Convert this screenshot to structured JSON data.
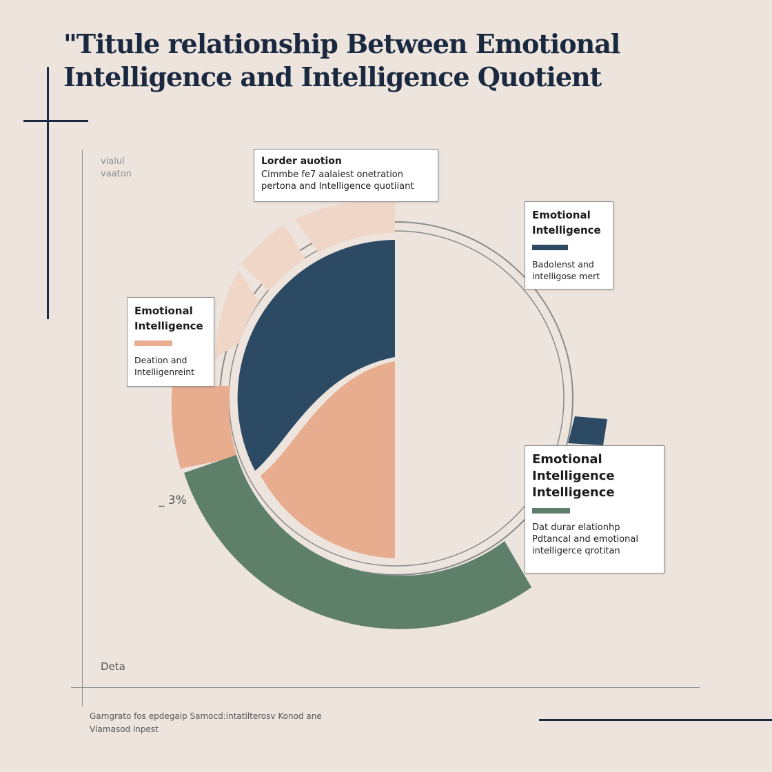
{
  "chart_data": {
    "type": "pie",
    "title_lines": [
      "\"Titule relationship Between Emotional",
      "Intelligence and Intelligence Quotient"
    ],
    "y_axis_caption_lines": [
      "vialul",
      "vaaton"
    ],
    "x_axis_caption": "Deta",
    "annotation": "_ 3%",
    "footer_lines": [
      "Gamgrato fos epdegaip Samocd:intatilterosv Konod ane",
      "Vlamasod lnpest"
    ],
    "series_colors": {
      "navy": "#2d4a64",
      "peach": "#e8ac8f",
      "light_peach": "#f0d6c6",
      "green": "#5e806b",
      "outline": "#8a8a8a"
    },
    "inner_pie": {
      "navy_share": 0.25,
      "peach_share": 0.25,
      "empty_share": 0.5
    },
    "outer_ring": {
      "light_peach_share": 0.22,
      "peach_share": 0.08,
      "green_share": 0.25,
      "navy_share": 0.02
    },
    "callouts": {
      "top": {
        "heading": "Lorder auotion",
        "body_lines": [
          "Cimmbe fe7 aalaiest onetration",
          "pertona and Intelligence quotiiant"
        ]
      },
      "right": {
        "heading_lines": [
          "Emotional",
          "Intelligence"
        ],
        "swatch": "#2d4a64",
        "body_lines": [
          "Badolenst and",
          "intelligose mert"
        ]
      },
      "left": {
        "heading_lines": [
          "Emotional",
          "Intelligence"
        ],
        "swatch": "#e8ac8f",
        "body_lines": [
          "Deation and",
          "Intelligenreint"
        ]
      },
      "bottom": {
        "heading_lines": [
          "Emotional",
          "Intelligence",
          "Intelligence"
        ],
        "swatch": "#5e806b",
        "body_lines": [
          "Dat durar elationhp",
          "Pdtancal and emotional",
          "intelligerce qrotitan"
        ]
      }
    }
  }
}
